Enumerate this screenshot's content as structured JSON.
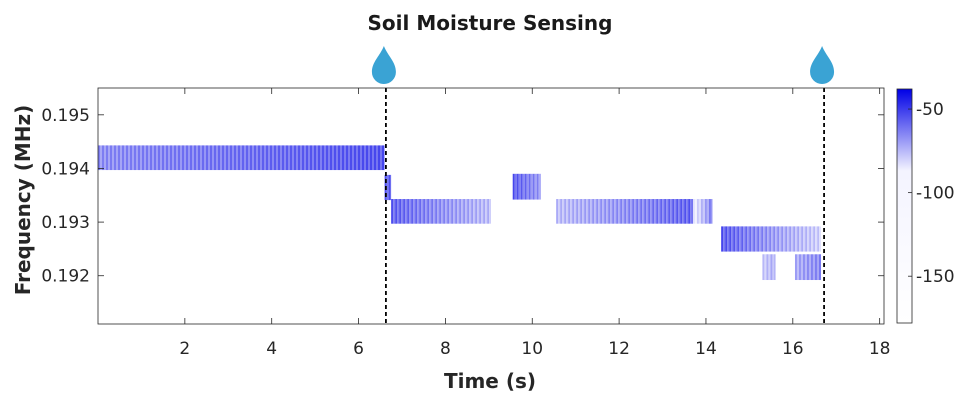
{
  "chart_data": {
    "type": "heatmap",
    "title": "Soil Moisture Sensing",
    "xlabel": "Time (s)",
    "ylabel": "Frequency (MHz)",
    "xlim": [
      0,
      18.1
    ],
    "ylim": [
      0.1911,
      0.1955
    ],
    "x_ticks": [
      2,
      4,
      6,
      8,
      10,
      12,
      14,
      16,
      18
    ],
    "y_ticks": [
      0.192,
      0.193,
      0.194,
      0.195
    ],
    "x_tick_labels": [
      "2",
      "4",
      "6",
      "8",
      "10",
      "12",
      "14",
      "16",
      "18"
    ],
    "y_tick_labels": [
      "0.192",
      "0.193",
      "0.194",
      "0.195"
    ],
    "colorbar": {
      "range": [
        -178,
        -38
      ],
      "ticks": [
        -50,
        -100,
        -150
      ],
      "tick_labels": [
        "-50",
        "-100",
        "-150"
      ],
      "color_high": "#0000e6",
      "color_low": "#ffffff"
    },
    "watering_events": [
      6.63,
      16.72
    ],
    "watering_marker_color": "#3aa3d4",
    "bands": [
      {
        "x_start": 0.0,
        "x_end": 6.6,
        "f_low": 0.19397,
        "f_high": 0.19443,
        "power_start": -95,
        "power_end": -68
      },
      {
        "x_start": 6.6,
        "x_end": 6.75,
        "f_low": 0.19341,
        "f_high": 0.19388,
        "power_start": -72,
        "power_end": -72
      },
      {
        "x_start": 6.75,
        "x_end": 9.05,
        "f_low": 0.19297,
        "f_high": 0.19343,
        "power_start": -72,
        "power_end": -118
      },
      {
        "x_start": 9.55,
        "x_end": 10.2,
        "f_low": 0.19342,
        "f_high": 0.1939,
        "power_start": -68,
        "power_end": -100
      },
      {
        "x_start": 10.55,
        "x_end": 13.7,
        "f_low": 0.19297,
        "f_high": 0.19343,
        "power_start": -118,
        "power_end": -70
      },
      {
        "x_start": 13.7,
        "x_end": 14.15,
        "f_low": 0.19297,
        "f_high": 0.19343,
        "power_start": -150,
        "power_end": -80
      },
      {
        "x_start": 14.35,
        "x_end": 16.65,
        "f_low": 0.19245,
        "f_high": 0.19292,
        "power_start": -68,
        "power_end": -130
      },
      {
        "x_start": 15.3,
        "x_end": 15.6,
        "f_low": 0.19192,
        "f_high": 0.1924,
        "power_start": -125,
        "power_end": -110
      },
      {
        "x_start": 16.05,
        "x_end": 16.65,
        "f_low": 0.19192,
        "f_high": 0.1924,
        "power_start": -110,
        "power_end": -90
      }
    ]
  }
}
